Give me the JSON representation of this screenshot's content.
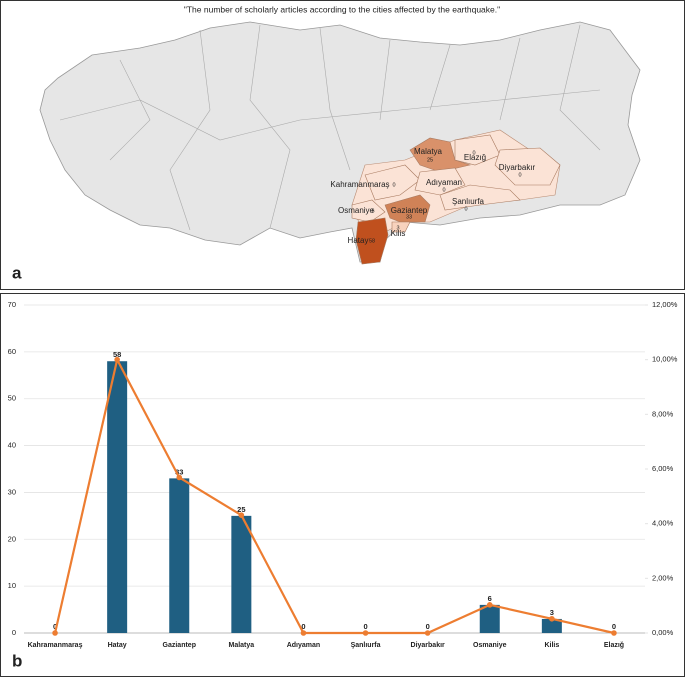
{
  "map": {
    "title": "\"The number of scholarly articles according to the cities affected by the earthquake.\"",
    "panel": "a",
    "cities": [
      {
        "name": "Malatya",
        "value": 25,
        "color": "#d9916a"
      },
      {
        "name": "Elazığ",
        "value": 0,
        "color": "#fbe3d6"
      },
      {
        "name": "Diyarbakır",
        "value": 0,
        "color": "#fbe3d6"
      },
      {
        "name": "Kahramanmaraş",
        "value": 0,
        "color": "#fbe3d6"
      },
      {
        "name": "Adıyaman",
        "value": 0,
        "color": "#fbe3d6"
      },
      {
        "name": "Şanlıurfa",
        "value": 0,
        "color": "#fbe3d6"
      },
      {
        "name": "Osmaniye",
        "value": 6,
        "color": "#fbe3d6"
      },
      {
        "name": "Gaziantep",
        "value": 33,
        "color": "#d08257"
      },
      {
        "name": "Kilis",
        "value": 3,
        "color": "#f8d2bd"
      },
      {
        "name": "Hatay",
        "value": 58,
        "color": "#c0501e"
      }
    ]
  },
  "chart_data": {
    "type": "bar",
    "panel": "b",
    "categories": [
      "Kahramanmaraş",
      "Hatay",
      "Gaziantep",
      "Malatya",
      "Adıyaman",
      "Şanlıurfa",
      "Diyarbakır",
      "Osmaniye",
      "Kilis",
      "Elazığ"
    ],
    "series": [
      {
        "type": "bar",
        "color": "#1f5f82",
        "values": [
          0,
          58,
          33,
          25,
          0,
          0,
          0,
          6,
          3,
          0
        ]
      },
      {
        "type": "line",
        "color": "#ed7d31",
        "axis": "y2",
        "values": [
          0,
          10.0,
          5.69,
          4.31,
          0,
          0,
          0,
          1.03,
          0.52,
          0
        ]
      }
    ],
    "ylim": [
      0,
      70
    ],
    "yticks": [
      0,
      10,
      20,
      30,
      40,
      50,
      60,
      70
    ],
    "y2lim": [
      0,
      12
    ],
    "y2ticks": [
      {
        "value": 0,
        "label": "0,00%"
      },
      {
        "value": 2,
        "label": "2,00%"
      },
      {
        "value": 4,
        "label": "4,00%"
      },
      {
        "value": 6,
        "label": "6,00%"
      },
      {
        "value": 8,
        "label": "8,00%"
      },
      {
        "value": 10,
        "label": "10,00%"
      },
      {
        "value": 12,
        "label": "12,00%"
      }
    ],
    "grid": true
  }
}
